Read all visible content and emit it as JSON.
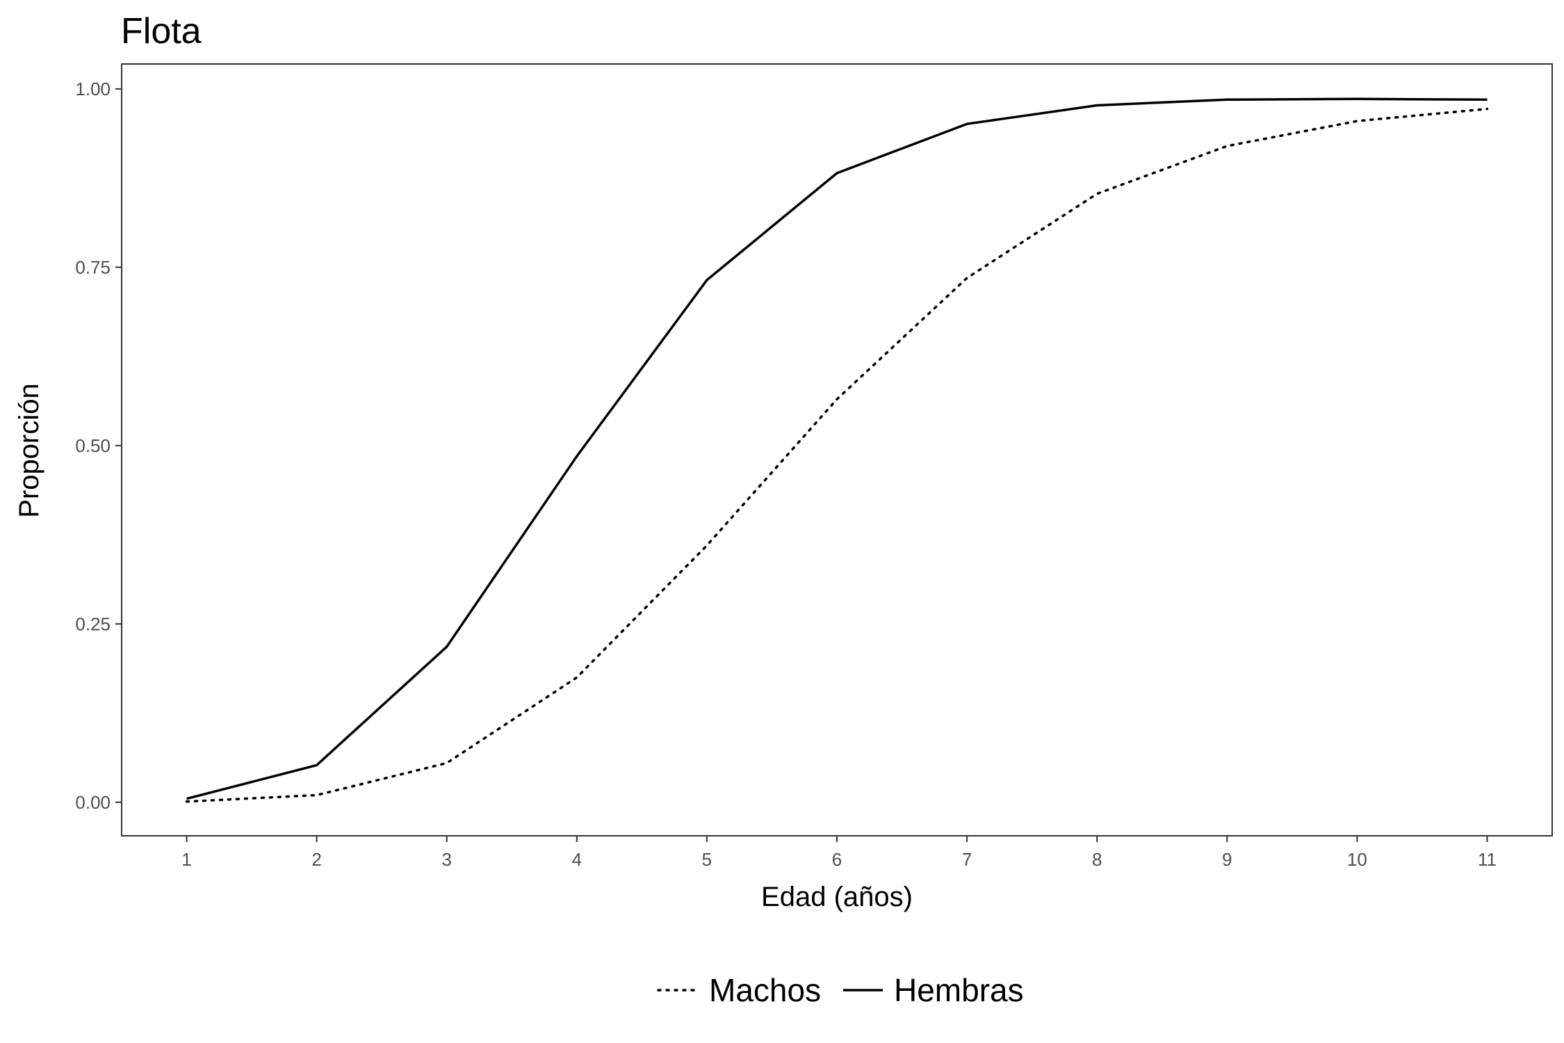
{
  "chart_data": {
    "type": "line",
    "title": "Flota",
    "xlabel": "Edad (años)",
    "ylabel": "Proporción",
    "x": [
      1,
      2,
      3,
      4,
      5,
      6,
      7,
      8,
      9,
      10,
      11
    ],
    "x_tick_labels": [
      "1",
      "2",
      "3",
      "4",
      "5",
      "6",
      "7",
      "8",
      "9",
      "10",
      "11"
    ],
    "y_ticks": [
      0,
      0.25,
      0.5,
      0.75,
      1
    ],
    "y_tick_labels": [
      "0.00",
      "0.25",
      "0.50",
      "0.75",
      "1.00"
    ],
    "ylim": [
      -0.047,
      1.035
    ],
    "xlim": [
      0.5,
      11.5
    ],
    "grid": false,
    "legend_position": "bottom",
    "series": [
      {
        "name": "Machos",
        "line_style": "dotted",
        "color": "#000000",
        "values": [
          0.001,
          0.01,
          0.055,
          0.175,
          0.36,
          0.565,
          0.735,
          0.853,
          0.92,
          0.955,
          0.972
        ]
      },
      {
        "name": "Hembras",
        "line_style": "solid",
        "color": "#000000",
        "values": [
          0.005,
          0.052,
          0.218,
          0.485,
          0.732,
          0.882,
          0.951,
          0.977,
          0.985,
          0.986,
          0.985
        ]
      }
    ]
  }
}
